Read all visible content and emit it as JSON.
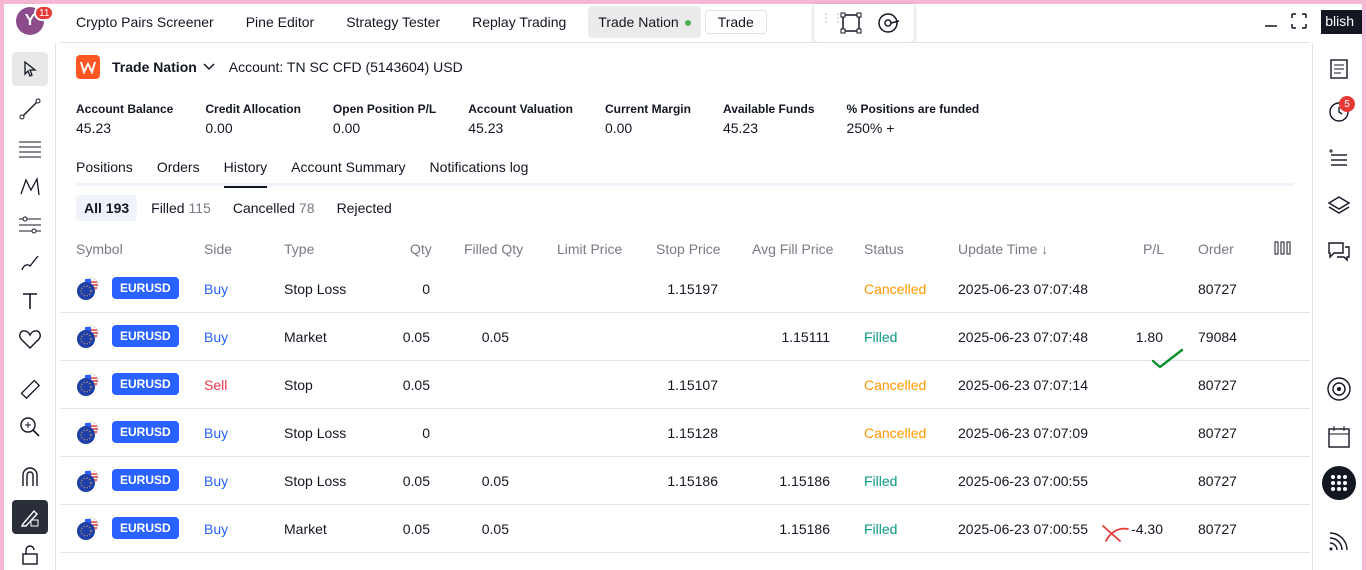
{
  "avatar": {
    "letter": "Y",
    "badge": "11"
  },
  "top_tabs": [
    {
      "label": "Crypto Pairs Screener"
    },
    {
      "label": "Pine Editor"
    },
    {
      "label": "Strategy Tester"
    },
    {
      "label": "Replay Trading"
    },
    {
      "label": "Trade Nation"
    }
  ],
  "trade_button": "Trade",
  "publish_label": "blish",
  "broker": {
    "name": "Trade Nation",
    "account": "Account: TN SC CFD (5143604) USD",
    "accent": "#ff5722"
  },
  "metrics": [
    {
      "label": "Account Balance",
      "value": "45.23"
    },
    {
      "label": "Credit Allocation",
      "value": "0.00"
    },
    {
      "label": "Open Position P/L",
      "value": "0.00"
    },
    {
      "label": "Account Valuation",
      "value": "45.23"
    },
    {
      "label": "Current Margin",
      "value": "0.00"
    },
    {
      "label": "Available Funds",
      "value": "45.23"
    },
    {
      "label": "% Positions are funded",
      "value": "250% +"
    }
  ],
  "sub_tabs": [
    "Positions",
    "Orders",
    "History",
    "Account Summary",
    "Notifications log"
  ],
  "active_sub_tab": "History",
  "filters": [
    {
      "label": "All",
      "count": "193"
    },
    {
      "label": "Filled",
      "count": "115"
    },
    {
      "label": "Cancelled",
      "count": "78"
    },
    {
      "label": "Rejected",
      "count": ""
    }
  ],
  "columns": {
    "symbol": "Symbol",
    "side": "Side",
    "type": "Type",
    "qty": "Qty",
    "filled_qty": "Filled Qty",
    "limit_price": "Limit Price",
    "stop_price": "Stop Price",
    "avg_fill_price": "Avg Fill Price",
    "status": "Status",
    "update_time": "Update Time ↓",
    "pl": "P/L",
    "order": "Order"
  },
  "rows": [
    {
      "symbol": "EURUSD",
      "side": "Buy",
      "type": "Stop Loss",
      "qty": "0",
      "filled_qty": "",
      "limit_price": "",
      "stop_price": "1.15197",
      "avg_fill_price": "",
      "status": "Cancelled",
      "update_time": "2025-06-23 07:07:48",
      "pl": "",
      "order": "80727"
    },
    {
      "symbol": "EURUSD",
      "side": "Buy",
      "type": "Market",
      "qty": "0.05",
      "filled_qty": "0.05",
      "limit_price": "",
      "stop_price": "",
      "avg_fill_price": "1.15111",
      "status": "Filled",
      "update_time": "2025-06-23 07:07:48",
      "pl": "1.80",
      "order": "79084"
    },
    {
      "symbol": "EURUSD",
      "side": "Sell",
      "type": "Stop",
      "qty": "0.05",
      "filled_qty": "",
      "limit_price": "",
      "stop_price": "1.15107",
      "avg_fill_price": "",
      "status": "Cancelled",
      "update_time": "2025-06-23 07:07:14",
      "pl": "",
      "order": "80727"
    },
    {
      "symbol": "EURUSD",
      "side": "Buy",
      "type": "Stop Loss",
      "qty": "0",
      "filled_qty": "",
      "limit_price": "",
      "stop_price": "1.15128",
      "avg_fill_price": "",
      "status": "Cancelled",
      "update_time": "2025-06-23 07:07:09",
      "pl": "",
      "order": "80727"
    },
    {
      "symbol": "EURUSD",
      "side": "Buy",
      "type": "Stop Loss",
      "qty": "0.05",
      "filled_qty": "0.05",
      "limit_price": "",
      "stop_price": "1.15186",
      "avg_fill_price": "1.15186",
      "status": "Filled",
      "update_time": "2025-06-23 07:00:55",
      "pl": "",
      "order": "80727"
    },
    {
      "symbol": "EURUSD",
      "side": "Buy",
      "type": "Market",
      "qty": "0.05",
      "filled_qty": "0.05",
      "limit_price": "",
      "stop_price": "",
      "avg_fill_price": "1.15186",
      "status": "Filled",
      "update_time": "2025-06-23 07:00:55",
      "pl": "-4.30",
      "order": "80727"
    }
  ],
  "right_toolbar": {
    "alerts_badge": "5"
  },
  "colors": {
    "buy": "#2962ff",
    "sell": "#f23645",
    "cancelled": "#ff9800",
    "filled": "#089981",
    "badge": "#e53935"
  }
}
